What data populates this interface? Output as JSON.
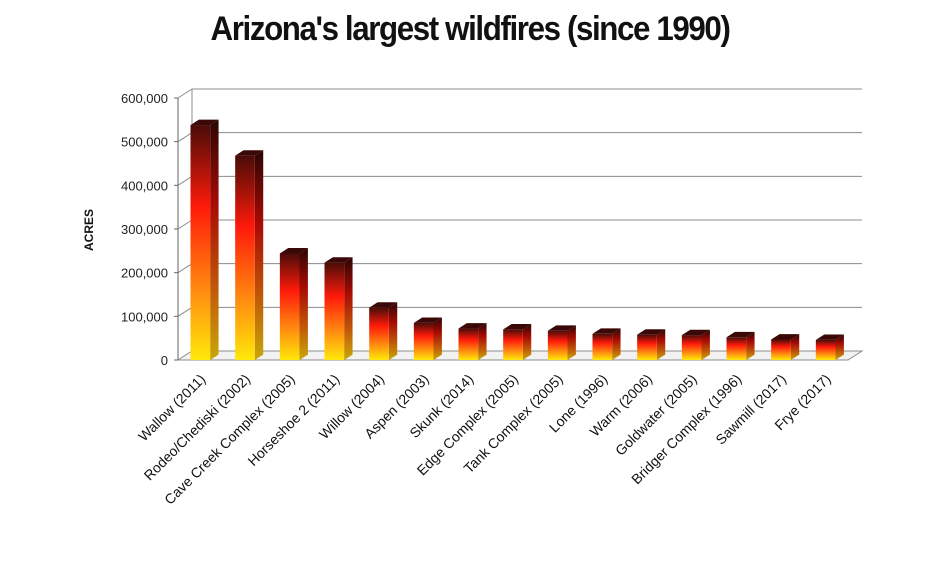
{
  "chart_data": {
    "type": "bar",
    "title": "Arizona's largest wildfires (since 1990)",
    "ylabel": "ACRES",
    "xlabel": "",
    "ylim": [
      0,
      600000
    ],
    "yticks": [
      "0",
      "100,000",
      "200,000",
      "300,000",
      "400,000",
      "500,000",
      "600,000"
    ],
    "ytick_values": [
      0,
      100000,
      200000,
      300000,
      400000,
      500000,
      600000
    ],
    "grid": true,
    "categories": [
      "Wallow (2011)",
      "Rodeo/Chediski (2002)",
      "Cave Creek Complex (2005)",
      "Horseshoe 2 (2011)",
      "Willow (2004)",
      "Aspen (2003)",
      "Skunk (2014)",
      "Edge Complex (2005)",
      "Tank Complex (2005)",
      "Lone (1996)",
      "Warm (2006)",
      "Goldwater (2005)",
      "Bridger Complex (1996)",
      "Sawmill (2017)",
      "Frye (2017)"
    ],
    "values": [
      538000,
      468000,
      244000,
      223000,
      120000,
      85000,
      72000,
      70000,
      67000,
      60000,
      58000,
      57000,
      52000,
      47000,
      46000
    ],
    "colors": {
      "top": "#4a0c08",
      "mid": "#ff1a0a",
      "bottom": "#ffe80a",
      "grid": "#8c8c8c"
    }
  }
}
